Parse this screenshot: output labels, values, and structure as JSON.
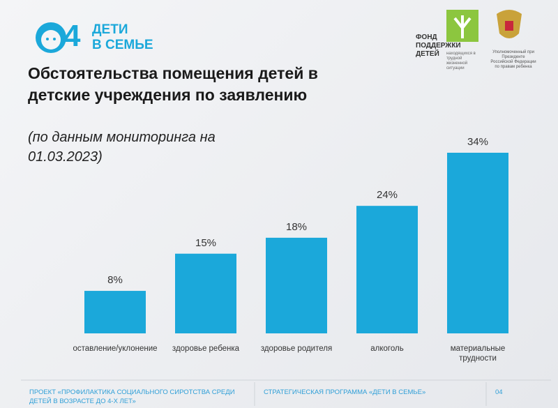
{
  "header": {
    "logo_digit": "4",
    "logo_line1": "ДЕТИ",
    "logo_line2": "В СЕМЬЕ",
    "fund_line1": "ФОНД",
    "fund_line2": "ПОДДЕРЖКИ",
    "fund_line3": "ДЕТЕЙ",
    "fund_note": "находящихся в трудной жизненной ситуации",
    "ombudsman": "Уполномоченный при Президенте Российской Федерации по правам ребенка"
  },
  "chart_data": {
    "type": "bar",
    "title": "Обстоятельства помещения детей в детские учреждения по заявлению",
    "subtitle": "(по данным мониторинга на 01.03.2023)",
    "categories": [
      "оставление/уклонение",
      "здоровье ребенка",
      "здоровье родителя",
      "алкоголь",
      "материальные трудности"
    ],
    "values": [
      8,
      15,
      18,
      24,
      34
    ],
    "value_labels": [
      "8%",
      "15%",
      "18%",
      "24%",
      "34%"
    ],
    "color": "#1ba8da"
  },
  "footer": {
    "project": "ПРОЕКТ «ПРОФИЛАКТИКА СОЦИАЛЬНОГО СИРОТСТВА СРЕДИ ДЕТЕЙ В ВОЗРАСТЕ ДО 4-Х ЛЕТ»",
    "program": "СТРАТЕГИЧЕСКАЯ ПРОГРАММА «ДЕТИ В СЕМЬЕ»",
    "page": "04"
  }
}
